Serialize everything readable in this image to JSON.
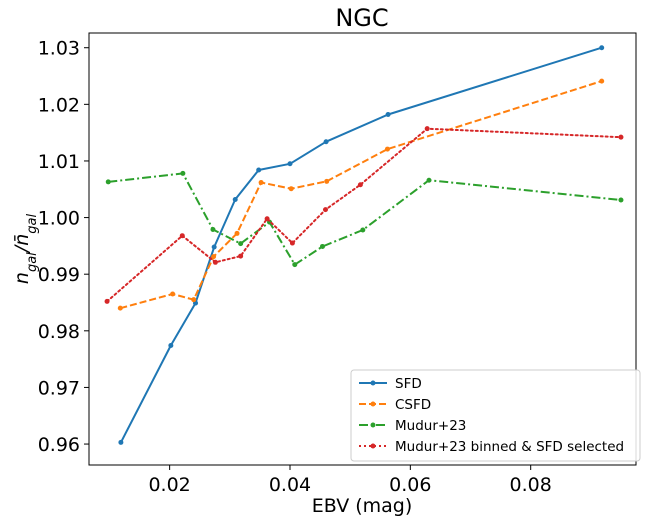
{
  "chart_data": {
    "type": "line",
    "title": "NGC",
    "xlabel": "EBV (mag)",
    "ylabel": "n_gal / n̄_gal",
    "xlim": [
      0.0066,
      0.0975
    ],
    "ylim": [
      0.9563,
      1.0326
    ],
    "x_ticks": [
      0.02,
      0.04,
      0.06,
      0.08
    ],
    "x_tick_labels": [
      "0.02",
      "0.04",
      "0.06",
      "0.08"
    ],
    "y_ticks": [
      0.96,
      0.97,
      0.98,
      0.99,
      1.0,
      1.01,
      1.02,
      1.03
    ],
    "y_tick_labels": [
      "0.96",
      "0.97",
      "0.98",
      "0.99",
      "1.00",
      "1.01",
      "1.02",
      "1.03"
    ],
    "grid": false,
    "legend_position": "bottom-right",
    "series": [
      {
        "name": "SFD",
        "color": "#1f77b4",
        "style": "solid",
        "x": [
          0.0119,
          0.0202,
          0.0243,
          0.0274,
          0.0309,
          0.0348,
          0.04,
          0.046,
          0.0563,
          0.0918
        ],
        "y": [
          0.9603,
          0.9774,
          0.9849,
          0.9948,
          1.0032,
          1.0084,
          1.0095,
          1.0134,
          1.0182,
          1.03
        ]
      },
      {
        "name": "CSFD",
        "color": "#ff7f0e",
        "style": "dashed",
        "x": [
          0.0118,
          0.0205,
          0.024,
          0.0273,
          0.0312,
          0.0352,
          0.0402,
          0.0461,
          0.0562,
          0.0918
        ],
        "y": [
          0.984,
          0.9865,
          0.9855,
          0.9931,
          0.9972,
          1.0062,
          1.0051,
          1.0064,
          1.0121,
          1.0241
        ]
      },
      {
        "name": "Mudur+23",
        "color": "#2ca02c",
        "style": "dashdot",
        "x": [
          0.0098,
          0.0222,
          0.0272,
          0.0318,
          0.0366,
          0.0408,
          0.0454,
          0.0521,
          0.0631,
          0.095
        ],
        "y": [
          1.0063,
          1.0078,
          0.9979,
          0.9954,
          0.9992,
          0.9917,
          0.9949,
          0.9978,
          1.0066,
          1.0031
        ]
      },
      {
        "name": "Mudur+23 binned & SFD selected",
        "color": "#d62728",
        "style": "dotted",
        "x": [
          0.0096,
          0.0221,
          0.0276,
          0.0318,
          0.0362,
          0.0404,
          0.0459,
          0.0517,
          0.0628,
          0.095
        ],
        "y": [
          0.9852,
          0.9968,
          0.9921,
          0.9932,
          0.9998,
          0.9955,
          1.0014,
          1.0058,
          1.0157,
          1.0142
        ]
      }
    ]
  }
}
